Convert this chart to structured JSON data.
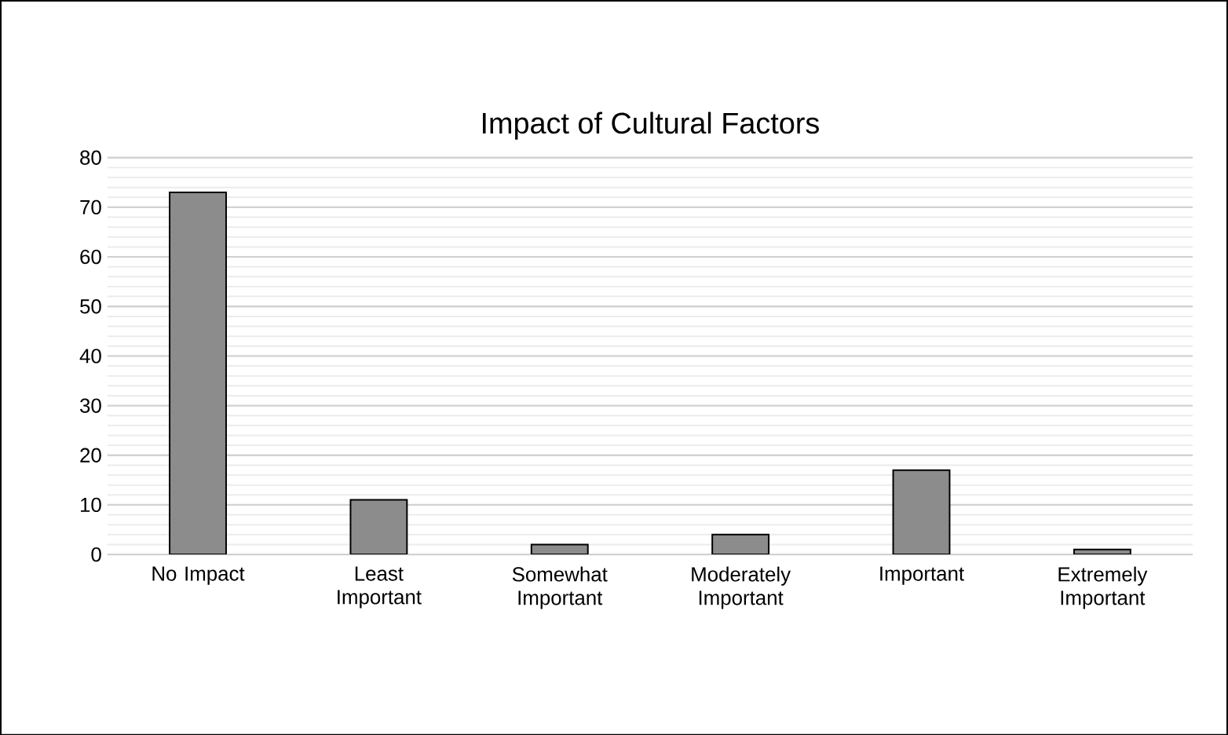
{
  "chart_data": {
    "type": "bar",
    "title": "Impact of Cultural Factors",
    "categories": [
      "No Impact",
      "Least Important",
      "Somewhat Important",
      "Moderately Important",
      "Important",
      "Extremely Important"
    ],
    "values": [
      73,
      11,
      2,
      4,
      17,
      1
    ],
    "color": "#8c8c8c",
    "ylim": [
      0,
      80
    ],
    "yticks": [
      0,
      10,
      20,
      30,
      40,
      50,
      60,
      70,
      80
    ],
    "grid": "y"
  }
}
